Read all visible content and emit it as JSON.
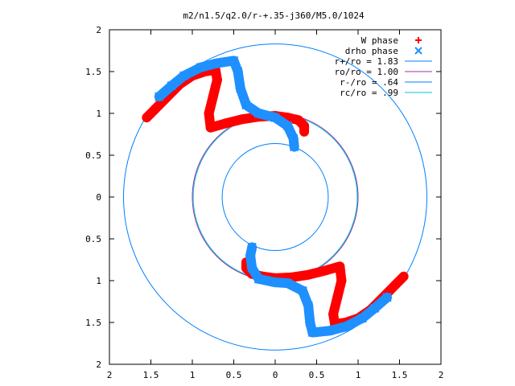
{
  "chart_data": {
    "type": "scatter",
    "title": "m2/n1.5/q2.0/r-+.35-j360/M5.0/1024",
    "xlabel": "",
    "ylabel": "",
    "xlim": [
      -2,
      2
    ],
    "ylim": [
      -2,
      2
    ],
    "xtick_values": [
      -2,
      -1.5,
      -1,
      -0.5,
      0,
      0.5,
      1,
      1.5,
      2
    ],
    "xtick_labels": [
      "2",
      "1.5",
      "1",
      "0.5",
      "0",
      "0.5",
      "1",
      "1.5",
      "2"
    ],
    "ytick_values": [
      2,
      1.5,
      1,
      0.5,
      0,
      -0.5,
      -1,
      -1.5,
      -2
    ],
    "ytick_labels": [
      "2",
      "1.5",
      "1",
      "0.5",
      "0",
      "0.5",
      "1",
      "1.5",
      "2"
    ],
    "grid": false,
    "legend_position": "top-right",
    "circles": [
      {
        "name": "r+/ro = 1.83",
        "radius": 1.83,
        "color": "#0080ff"
      },
      {
        "name": "ro/ro = 1.00",
        "radius": 1.0,
        "color": "#a030a0"
      },
      {
        "name": "r-/ro = .64",
        "radius": 0.64,
        "color": "#0080ff"
      },
      {
        "name": "rc/ro = .99",
        "radius": 0.99,
        "color": "#00c0e0"
      }
    ],
    "series": [
      {
        "name": "W phase",
        "marker": "+",
        "color": "#ff0000",
        "points": [
          [
            -1.55,
            0.95
          ],
          [
            -1.45,
            1.05
          ],
          [
            -1.3,
            1.2
          ],
          [
            -1.15,
            1.35
          ],
          [
            -1.0,
            1.45
          ],
          [
            -0.85,
            1.5
          ],
          [
            -0.72,
            1.52
          ],
          [
            -0.7,
            1.4
          ],
          [
            -0.75,
            1.2
          ],
          [
            -0.8,
            1.0
          ],
          [
            -0.78,
            0.83
          ],
          [
            -0.6,
            0.88
          ],
          [
            -0.4,
            0.93
          ],
          [
            -0.2,
            0.96
          ],
          [
            0.0,
            0.97
          ],
          [
            0.15,
            0.95
          ],
          [
            0.28,
            0.92
          ],
          [
            0.35,
            0.85
          ],
          [
            0.35,
            0.78
          ],
          [
            1.55,
            -0.95
          ],
          [
            1.45,
            -1.05
          ],
          [
            1.3,
            -1.2
          ],
          [
            1.15,
            -1.35
          ],
          [
            1.0,
            -1.45
          ],
          [
            0.85,
            -1.5
          ],
          [
            0.72,
            -1.52
          ],
          [
            0.7,
            -1.4
          ],
          [
            0.75,
            -1.2
          ],
          [
            0.8,
            -1.0
          ],
          [
            0.78,
            -0.83
          ],
          [
            0.6,
            -0.88
          ],
          [
            0.4,
            -0.93
          ],
          [
            0.2,
            -0.96
          ],
          [
            0.0,
            -0.97
          ],
          [
            -0.15,
            -0.95
          ],
          [
            -0.28,
            -0.92
          ],
          [
            -0.35,
            -0.85
          ],
          [
            -0.35,
            -0.78
          ]
        ]
      },
      {
        "name": "drho phase",
        "marker": "x",
        "color": "#1e90ff",
        "points": [
          [
            -1.4,
            1.2
          ],
          [
            -1.25,
            1.33
          ],
          [
            -1.1,
            1.45
          ],
          [
            -0.9,
            1.55
          ],
          [
            -0.7,
            1.6
          ],
          [
            -0.5,
            1.63
          ],
          [
            -0.45,
            1.5
          ],
          [
            -0.42,
            1.3
          ],
          [
            -0.35,
            1.1
          ],
          [
            -0.2,
            1.0
          ],
          [
            0.0,
            0.95
          ],
          [
            0.15,
            0.85
          ],
          [
            0.22,
            0.7
          ],
          [
            0.23,
            0.6
          ],
          [
            1.35,
            -1.2
          ],
          [
            1.2,
            -1.33
          ],
          [
            1.05,
            -1.45
          ],
          [
            0.85,
            -1.55
          ],
          [
            0.65,
            -1.6
          ],
          [
            0.45,
            -1.62
          ],
          [
            0.42,
            -1.5
          ],
          [
            0.4,
            -1.3
          ],
          [
            0.33,
            -1.12
          ],
          [
            0.15,
            -1.03
          ],
          [
            0.0,
            -1.02
          ],
          [
            -0.2,
            -0.98
          ],
          [
            -0.28,
            -0.85
          ],
          [
            -0.3,
            -0.7
          ],
          [
            -0.28,
            -0.6
          ]
        ]
      }
    ]
  }
}
